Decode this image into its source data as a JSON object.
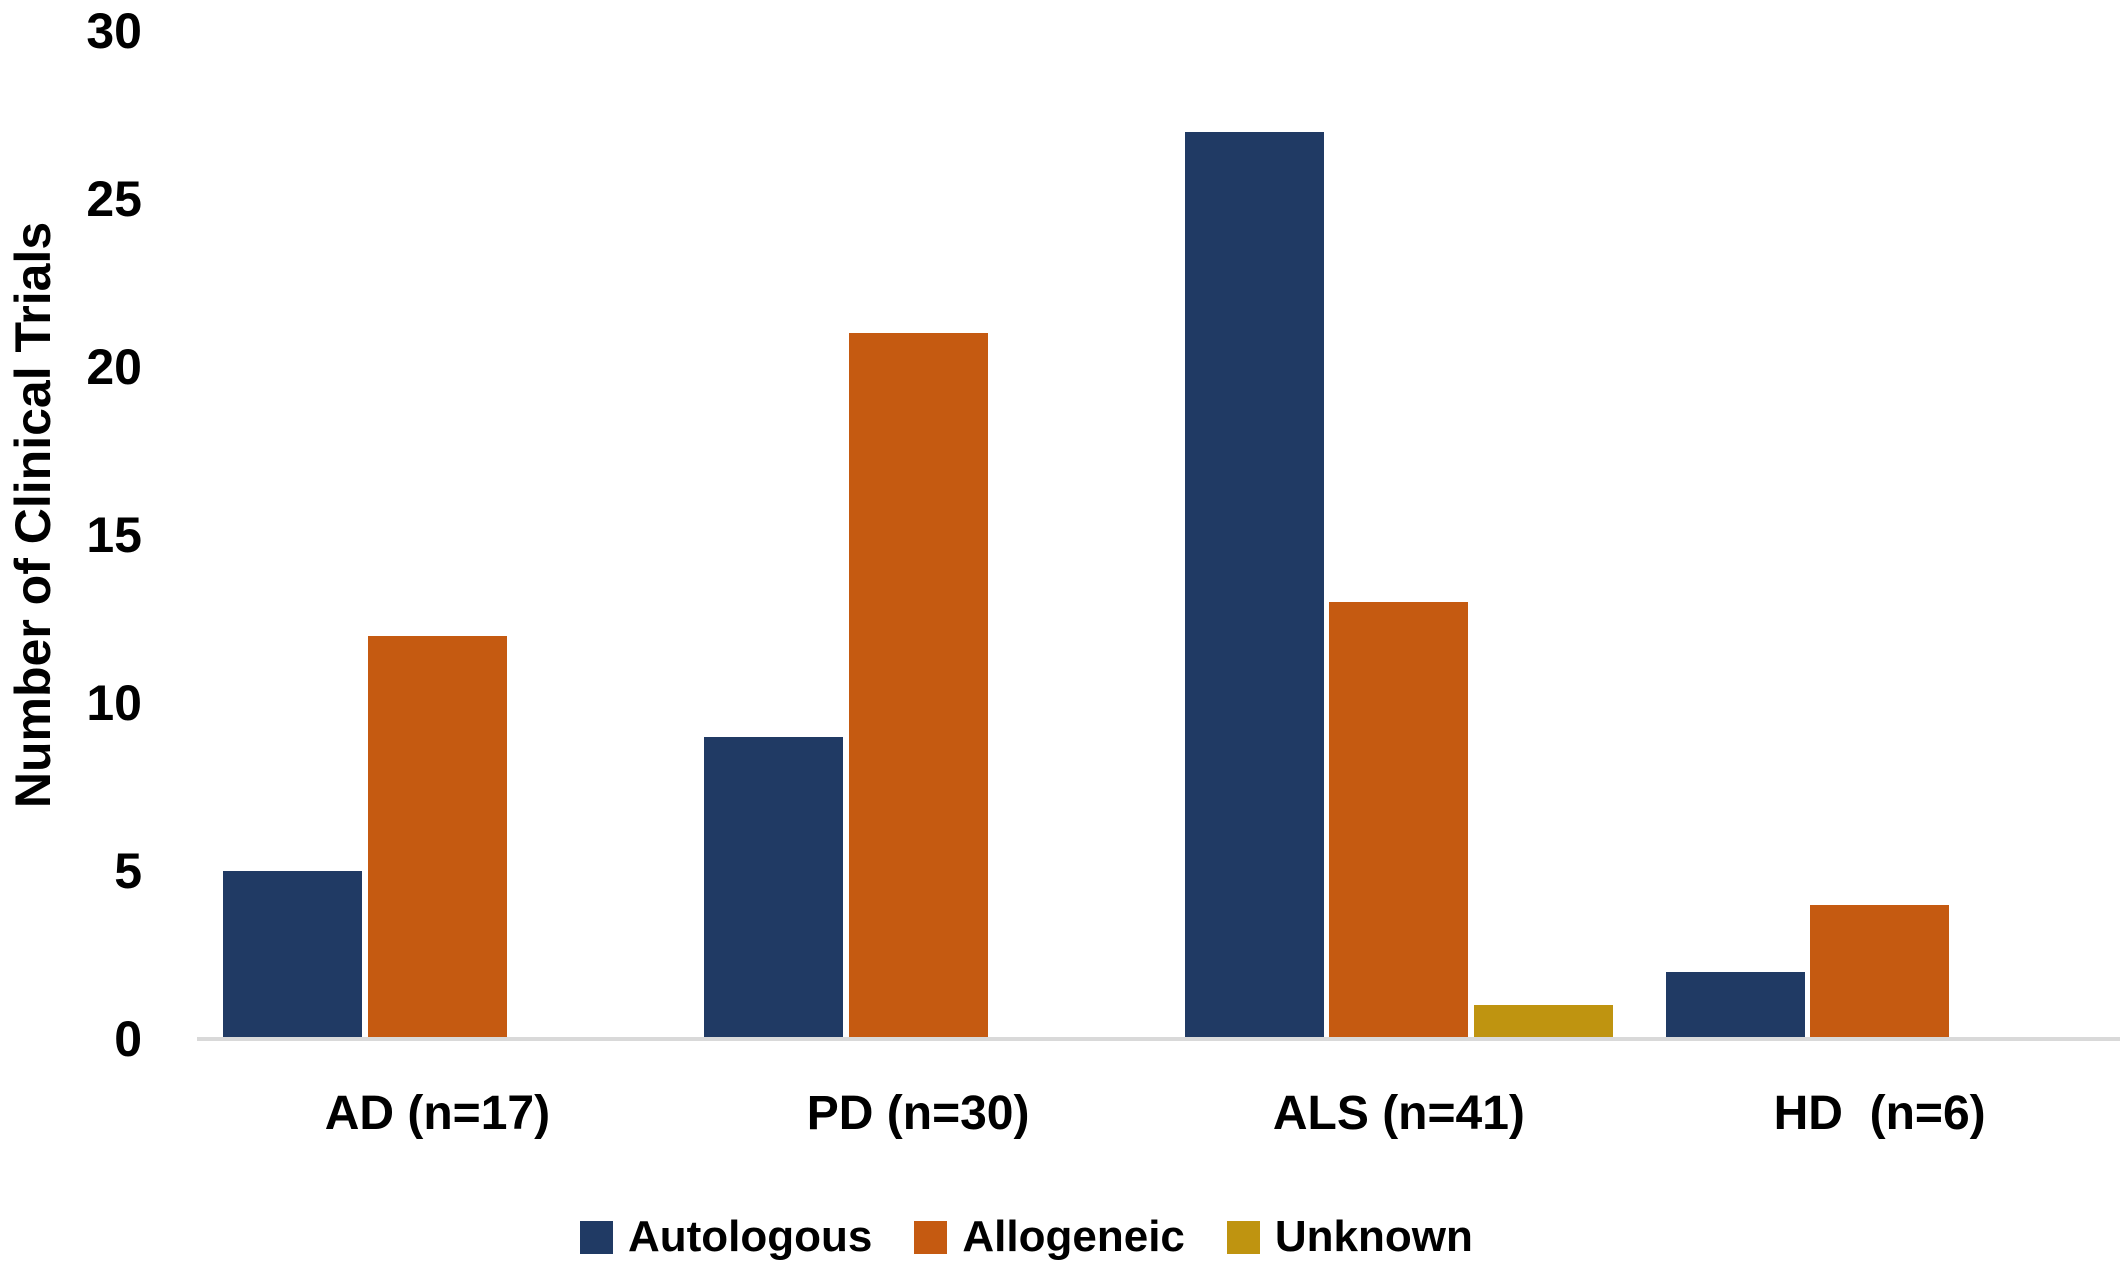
{
  "chart_data": {
    "type": "bar",
    "title": "",
    "ylabel": "Number of Clinical Trials",
    "xlabel": "",
    "ylim": [
      0,
      30
    ],
    "yticks": [
      0,
      5,
      10,
      15,
      20,
      25,
      30
    ],
    "grid": false,
    "legend_position": "bottom",
    "background_color": "#ffffff",
    "axis_line_color": "#d9d9d9",
    "text_color": "#000000",
    "categories": [
      "AD (n=17)",
      "PD (n=30)",
      "ALS (n=41)",
      "HD  (n=6)"
    ],
    "series": [
      {
        "name": "Autologous",
        "color": "#203a64",
        "values": [
          5,
          9,
          27,
          2
        ]
      },
      {
        "name": "Allogeneic",
        "color": "#c55a11",
        "values": [
          12,
          21,
          13,
          4
        ]
      },
      {
        "name": "Unknown",
        "color": "#bf9410",
        "values": [
          0,
          0,
          1,
          0
        ]
      }
    ]
  }
}
